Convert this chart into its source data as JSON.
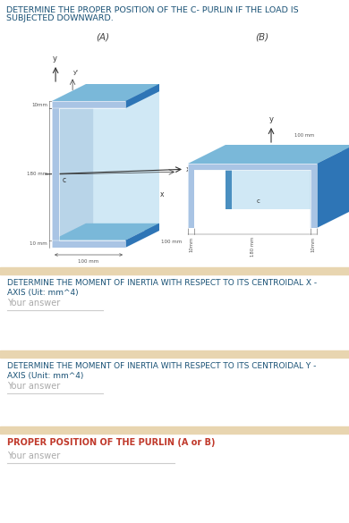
{
  "title_line1": "DETERMINE THE PROPER POSITION OF THE C- PURLIN IF THE LOAD IS",
  "title_line2": "SUBJECTED DOWNWARD.",
  "title_color": "#1a5276",
  "title_fontsize": 6.8,
  "label_A": "(A)",
  "label_B": "(B)",
  "section_bg": "#e8d5b0",
  "white_bg": "#ffffff",
  "q1_title_line1": "DETERMINE THE MOMENT OF INERTIA WITH RESPECT TO ITS CENTROIDAL X -",
  "q1_title_line2": "AXIS (Uit: mm^4)",
  "q2_title_line1": "DETERMINE THE MOMENT OF INERTIA WITH RESPECT TO ITS CENTROIDAL Y -",
  "q2_title_line2": "AXIS (Unit: mm^4)",
  "q3_title": "PROPER POSITION OF THE PURLIN (A or B)",
  "q1_color": "#1a5276",
  "q2_color": "#1a5276",
  "q3_color": "#c0392b",
  "answer_placeholder": "Your answer",
  "answer_color": "#aaaaaa",
  "c_main": "#5b9bd5",
  "c_dark": "#2e75b6",
  "c_light": "#a9c4e4",
  "c_top": "#7ab8d9",
  "c_back": "#4a8fc0",
  "c_open": "#d0e8f5"
}
